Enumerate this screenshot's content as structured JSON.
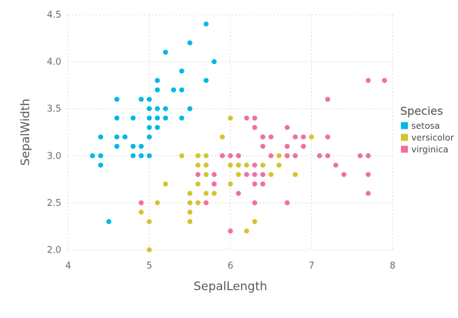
{
  "chart_data": {
    "type": "scatter",
    "title": "",
    "xlabel": "SepalLength",
    "ylabel": "SepalWidth",
    "xlim": [
      4,
      8
    ],
    "ylim": [
      2.0,
      4.5
    ],
    "xticks": [
      4,
      5,
      6,
      7,
      8
    ],
    "yticks": [
      2.0,
      2.5,
      3.0,
      3.5,
      4.0,
      4.5
    ],
    "grid": true,
    "legend": {
      "title": "Species",
      "placement": "right"
    },
    "series": [
      {
        "name": "setosa",
        "color": "#00b7e6",
        "points": [
          [
            4.3,
            3.0
          ],
          [
            4.4,
            2.9
          ],
          [
            4.4,
            3.0
          ],
          [
            4.4,
            3.2
          ],
          [
            4.5,
            2.3
          ],
          [
            4.6,
            3.1
          ],
          [
            4.6,
            3.2
          ],
          [
            4.6,
            3.4
          ],
          [
            4.6,
            3.6
          ],
          [
            4.7,
            3.2
          ],
          [
            4.8,
            3.0
          ],
          [
            4.8,
            3.1
          ],
          [
            4.8,
            3.4
          ],
          [
            4.9,
            3.0
          ],
          [
            4.9,
            3.1
          ],
          [
            4.9,
            3.6
          ],
          [
            5.0,
            3.0
          ],
          [
            5.0,
            3.2
          ],
          [
            5.0,
            3.3
          ],
          [
            5.0,
            3.4
          ],
          [
            5.0,
            3.5
          ],
          [
            5.0,
            3.6
          ],
          [
            5.1,
            3.3
          ],
          [
            5.1,
            3.4
          ],
          [
            5.1,
            3.5
          ],
          [
            5.1,
            3.7
          ],
          [
            5.1,
            3.8
          ],
          [
            5.2,
            3.4
          ],
          [
            5.2,
            3.5
          ],
          [
            5.2,
            4.1
          ],
          [
            5.3,
            3.7
          ],
          [
            5.4,
            3.4
          ],
          [
            5.4,
            3.7
          ],
          [
            5.4,
            3.9
          ],
          [
            5.5,
            3.5
          ],
          [
            5.5,
            4.2
          ],
          [
            5.7,
            3.8
          ],
          [
            5.7,
            4.4
          ],
          [
            5.8,
            4.0
          ]
        ]
      },
      {
        "name": "versicolor",
        "color": "#d4c42e",
        "points": [
          [
            4.9,
            2.4
          ],
          [
            5.0,
            2.0
          ],
          [
            5.0,
            2.3
          ],
          [
            5.1,
            2.5
          ],
          [
            5.2,
            2.7
          ],
          [
            5.4,
            3.0
          ],
          [
            5.5,
            2.3
          ],
          [
            5.5,
            2.4
          ],
          [
            5.5,
            2.5
          ],
          [
            5.5,
            2.6
          ],
          [
            5.6,
            2.5
          ],
          [
            5.6,
            2.7
          ],
          [
            5.6,
            2.9
          ],
          [
            5.6,
            3.0
          ],
          [
            5.7,
            2.6
          ],
          [
            5.7,
            2.8
          ],
          [
            5.7,
            2.9
          ],
          [
            5.7,
            3.0
          ],
          [
            5.8,
            2.6
          ],
          [
            5.8,
            2.7
          ],
          [
            5.9,
            3.0
          ],
          [
            5.9,
            3.2
          ],
          [
            6.0,
            2.2
          ],
          [
            6.0,
            2.7
          ],
          [
            6.0,
            2.9
          ],
          [
            6.0,
            3.4
          ],
          [
            6.1,
            2.8
          ],
          [
            6.1,
            2.9
          ],
          [
            6.1,
            3.0
          ],
          [
            6.2,
            2.2
          ],
          [
            6.2,
            2.9
          ],
          [
            6.3,
            2.3
          ],
          [
            6.3,
            2.5
          ],
          [
            6.3,
            3.3
          ],
          [
            6.4,
            2.9
          ],
          [
            6.4,
            3.2
          ],
          [
            6.5,
            2.8
          ],
          [
            6.6,
            2.9
          ],
          [
            6.6,
            3.0
          ],
          [
            6.7,
            3.0
          ],
          [
            6.7,
            3.1
          ],
          [
            6.8,
            2.8
          ],
          [
            6.9,
            3.1
          ],
          [
            7.0,
            3.2
          ]
        ]
      },
      {
        "name": "virginica",
        "color": "#f06fa3",
        "points": [
          [
            4.9,
            2.5
          ],
          [
            5.6,
            2.8
          ],
          [
            5.7,
            2.5
          ],
          [
            5.8,
            2.7
          ],
          [
            5.8,
            2.8
          ],
          [
            5.9,
            3.0
          ],
          [
            6.0,
            2.2
          ],
          [
            6.0,
            3.0
          ],
          [
            6.1,
            2.6
          ],
          [
            6.1,
            3.0
          ],
          [
            6.2,
            2.8
          ],
          [
            6.2,
            3.4
          ],
          [
            6.3,
            2.5
          ],
          [
            6.3,
            2.7
          ],
          [
            6.3,
            2.8
          ],
          [
            6.3,
            2.9
          ],
          [
            6.3,
            3.3
          ],
          [
            6.3,
            3.4
          ],
          [
            6.4,
            2.7
          ],
          [
            6.4,
            2.8
          ],
          [
            6.4,
            3.1
          ],
          [
            6.4,
            3.2
          ],
          [
            6.5,
            3.0
          ],
          [
            6.5,
            3.2
          ],
          [
            6.7,
            2.5
          ],
          [
            6.7,
            3.0
          ],
          [
            6.7,
            3.1
          ],
          [
            6.7,
            3.3
          ],
          [
            6.8,
            3.0
          ],
          [
            6.8,
            3.2
          ],
          [
            6.9,
            3.1
          ],
          [
            6.9,
            3.2
          ],
          [
            7.1,
            3.0
          ],
          [
            7.2,
            3.0
          ],
          [
            7.2,
            3.2
          ],
          [
            7.2,
            3.6
          ],
          [
            7.3,
            2.9
          ],
          [
            7.4,
            2.8
          ],
          [
            7.6,
            3.0
          ],
          [
            7.7,
            2.6
          ],
          [
            7.7,
            2.8
          ],
          [
            7.7,
            3.0
          ],
          [
            7.7,
            3.8
          ],
          [
            7.9,
            3.8
          ]
        ]
      }
    ]
  }
}
